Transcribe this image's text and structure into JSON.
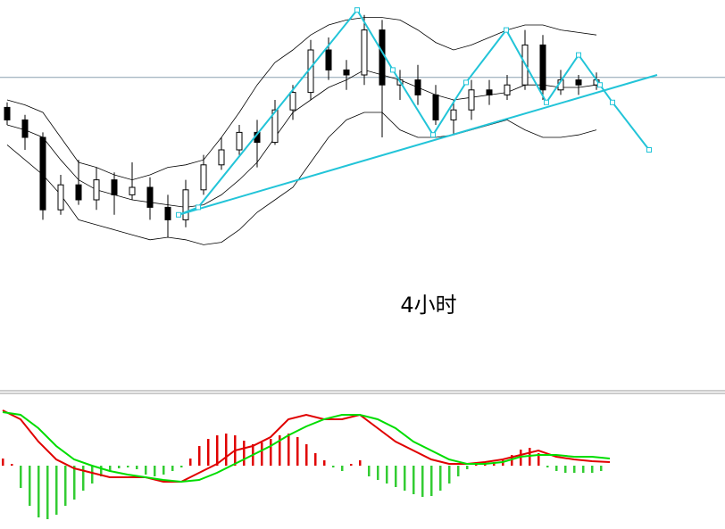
{
  "chart_data": [
    {
      "type": "candlestick",
      "annotation": "4小时",
      "ylim": [
        0,
        100
      ],
      "candles": {
        "open": [
          57,
          52,
          45,
          16,
          26,
          20,
          28,
          22,
          25,
          17,
          12,
          24,
          34,
          40,
          47,
          43,
          56,
          63,
          80,
          72,
          70,
          88,
          66,
          68,
          62,
          52,
          56,
          64,
          62,
          66,
          82,
          64,
          68,
          66
        ],
        "high": [
          59,
          54,
          47,
          30,
          36,
          33,
          31,
          35,
          29,
          22,
          28,
          38,
          45,
          50,
          52,
          60,
          66,
          84,
          85,
          76,
          94,
          92,
          72,
          74,
          66,
          60,
          68,
          68,
          70,
          88,
          86,
          72,
          70,
          71
        ],
        "low": [
          50,
          40,
          12,
          14,
          18,
          16,
          14,
          20,
          12,
          5,
          9,
          22,
          32,
          38,
          33,
          42,
          52,
          60,
          68,
          64,
          66,
          45,
          60,
          58,
          50,
          46,
          52,
          58,
          60,
          64,
          60,
          62,
          62,
          64
        ],
        "close": [
          52,
          45,
          16,
          26,
          20,
          28,
          22,
          25,
          17,
          12,
          24,
          34,
          40,
          47,
          43,
          56,
          63,
          80,
          72,
          70,
          88,
          66,
          68,
          62,
          52,
          56,
          64,
          62,
          66,
          82,
          64,
          68,
          66,
          68
        ]
      },
      "series": [
        {
          "color": "#000000",
          "values": [
            60,
            58,
            55,
            45,
            35,
            33,
            30,
            28,
            30,
            33,
            34,
            36,
            45,
            55,
            66,
            75,
            80,
            86,
            90,
            92,
            93,
            93,
            92,
            88,
            83,
            80,
            82,
            85,
            88,
            90,
            90,
            88,
            87,
            86
          ]
        },
        {
          "color": "#000000",
          "values": [
            50,
            48,
            45,
            36,
            28,
            24,
            22,
            20,
            19,
            18,
            17,
            18,
            22,
            28,
            35,
            45,
            55,
            60,
            65,
            68,
            72,
            70,
            68,
            65,
            62,
            60,
            61,
            62,
            63,
            66,
            66,
            65,
            65,
            66
          ]
        },
        {
          "color": "#000000",
          "values": [
            42,
            36,
            30,
            22,
            12,
            10,
            8,
            6,
            4,
            5,
            4,
            2,
            3,
            8,
            15,
            20,
            25,
            35,
            45,
            52,
            55,
            55,
            48,
            45,
            45,
            46,
            48,
            50,
            52,
            48,
            45,
            45,
            46,
            48
          ]
        }
      ],
      "zigzag": {
        "color": "#22c4d8",
        "x": [
          9.6,
          10.7,
          19.6,
          21.6,
          23.85,
          25.7,
          27.95,
          30.2,
          32,
          33.2,
          33.9,
          35.95
        ],
        "values": [
          14,
          17,
          96,
          72,
          46,
          67,
          88,
          59,
          78,
          66,
          59,
          40
        ]
      },
      "trendline": {
        "color": "#22c4d8",
        "x": [
          9.6,
          36.4
        ],
        "values": [
          14,
          70
        ]
      },
      "level": {
        "color": "#8aa0b0",
        "value": 69
      }
    },
    {
      "type": "macd",
      "ylim": [
        -71,
        77
      ],
      "histogram": {
        "up_color": "#e00000",
        "down_color": "#33cc33",
        "values": [
          8,
          2,
          -25,
          -45,
          -58,
          -60,
          -55,
          -45,
          -38,
          -28,
          -20,
          -12,
          -6,
          -3,
          -2,
          -4,
          -10,
          -12,
          -10,
          -6,
          -2,
          8,
          22,
          30,
          34,
          36,
          34,
          28,
          24,
          26,
          30,
          34,
          36,
          32,
          24,
          14,
          6,
          -2,
          -6,
          2,
          6,
          -12,
          -16,
          -20,
          -24,
          -28,
          -32,
          -35,
          -34,
          -28,
          -20,
          -12,
          -4,
          2,
          4,
          4,
          6,
          12,
          18,
          20,
          14,
          -2,
          -6,
          -8,
          -8,
          -8,
          -8,
          -6
        ]
      },
      "series": [
        {
          "color": "#e00000",
          "values": [
            62,
            52,
            27,
            7,
            -3,
            -8,
            -13,
            -13,
            -13,
            -18,
            -18,
            -8,
            2,
            17,
            22,
            32,
            52,
            57,
            52,
            52,
            57,
            42,
            27,
            17,
            7,
            2,
            2,
            4,
            7,
            12,
            17,
            10,
            7,
            5,
            4
          ]
        },
        {
          "color": "#00dd00",
          "values": [
            60,
            57,
            42,
            22,
            7,
            0,
            -6,
            -10,
            -13,
            -16,
            -18,
            -16,
            -8,
            2,
            12,
            22,
            34,
            44,
            52,
            57,
            57,
            52,
            42,
            27,
            17,
            7,
            2,
            2,
            4,
            10,
            12,
            12,
            10,
            10,
            8
          ]
        }
      ]
    }
  ]
}
